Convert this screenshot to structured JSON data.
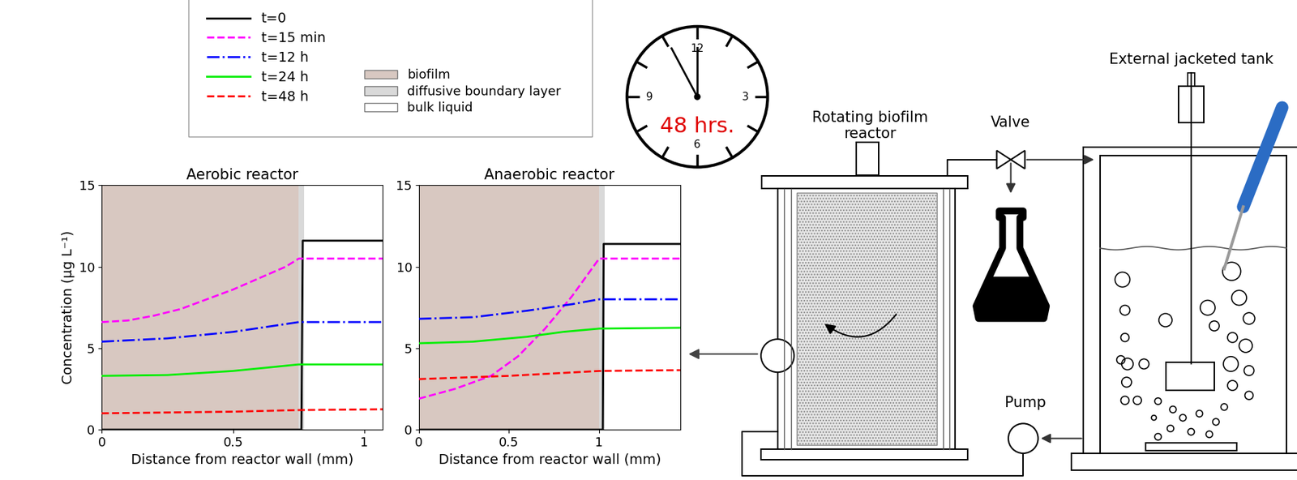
{
  "chart_data": [
    {
      "type": "line",
      "title": "Aerobic reactor",
      "x_label": "Distance from reactor wall (mm)",
      "y_label": "Concentration (µg L⁻¹)",
      "xlim": [
        0,
        1.07
      ],
      "xticks": [
        0,
        0.5,
        1
      ],
      "ylim": [
        0,
        15
      ],
      "yticks": [
        0,
        5,
        10,
        15
      ],
      "grid": false,
      "zone_bounds": [
        0.75,
        0.77
      ],
      "series": [
        {
          "name": "t=0",
          "color": "#000000",
          "line_style": "solid",
          "x": [
            0,
            0.76,
            0.765,
            1.07
          ],
          "values": [
            0,
            0,
            11.6,
            11.6
          ]
        },
        {
          "name": "t=15 min",
          "color": "#ff00ff",
          "line_style": "dashed",
          "x": [
            0,
            0.1,
            0.2,
            0.3,
            0.4,
            0.5,
            0.6,
            0.7,
            0.75,
            1.07
          ],
          "values": [
            6.6,
            6.7,
            7.0,
            7.4,
            8.0,
            8.6,
            9.3,
            10.0,
            10.5,
            10.5
          ]
        },
        {
          "name": "t=12 h",
          "color": "#0000ff",
          "line_style": "dashdot",
          "x": [
            0,
            0.25,
            0.5,
            0.75,
            1.07
          ],
          "values": [
            5.4,
            5.6,
            6.0,
            6.6,
            6.6
          ]
        },
        {
          "name": "t=24 h",
          "color": "#00ee00",
          "line_style": "solid",
          "x": [
            0,
            0.25,
            0.5,
            0.75,
            1.07
          ],
          "values": [
            3.3,
            3.35,
            3.6,
            4.0,
            4.0
          ]
        },
        {
          "name": "t=48 h",
          "color": "#ff0000",
          "line_style": "dashed",
          "x": [
            0,
            0.5,
            0.75,
            1.07
          ],
          "values": [
            1.0,
            1.1,
            1.2,
            1.25
          ]
        }
      ]
    },
    {
      "type": "line",
      "title": "Anaerobic reactor",
      "x_label": "Distance from reactor wall (mm)",
      "xlim": [
        0,
        1.45
      ],
      "xticks": [
        0,
        0.5,
        1
      ],
      "ylim": [
        0,
        15
      ],
      "yticks": [
        0,
        5,
        10,
        15
      ],
      "grid": false,
      "zone_bounds": [
        1.0,
        1.03
      ],
      "series": [
        {
          "name": "t=0",
          "color": "#000000",
          "line_style": "solid",
          "x": [
            0,
            1.02,
            1.025,
            1.45
          ],
          "values": [
            0,
            0,
            11.4,
            11.4
          ]
        },
        {
          "name": "t=15 min",
          "color": "#ff00ff",
          "line_style": "dashed",
          "x": [
            0,
            0.2,
            0.4,
            0.55,
            0.7,
            0.85,
            1.0,
            1.45
          ],
          "values": [
            1.9,
            2.5,
            3.3,
            4.5,
            6.2,
            8.2,
            10.5,
            10.5
          ]
        },
        {
          "name": "t=12 h",
          "color": "#0000ff",
          "line_style": "dashdot",
          "x": [
            0,
            0.3,
            0.6,
            0.85,
            1.0,
            1.45
          ],
          "values": [
            6.8,
            6.9,
            7.3,
            7.7,
            8.0,
            8.0
          ]
        },
        {
          "name": "t=24 h",
          "color": "#00ee00",
          "line_style": "solid",
          "x": [
            0,
            0.3,
            0.6,
            0.8,
            1.0,
            1.45
          ],
          "values": [
            5.3,
            5.4,
            5.7,
            6.0,
            6.2,
            6.25
          ]
        },
        {
          "name": "t=48 h",
          "color": "#ff0000",
          "line_style": "dashed",
          "x": [
            0,
            0.5,
            1.0,
            1.45
          ],
          "values": [
            3.1,
            3.3,
            3.6,
            3.65
          ]
        }
      ]
    }
  ],
  "zones": [
    {
      "name": "biofilm",
      "color": "#d8c8c1"
    },
    {
      "name": "diffusive boundary layer",
      "color": "#d9d9d9"
    },
    {
      "name": "bulk liquid",
      "color": "#ffffff"
    }
  ],
  "diagram": {
    "clock": {
      "label": "48 hrs.",
      "numbers": [
        "12",
        "3",
        "6",
        "9"
      ]
    },
    "reactor": "Rotating biofilm\nreactor",
    "valve": "Valve",
    "tank": "External jacketed tank",
    "pump": "Pump"
  }
}
